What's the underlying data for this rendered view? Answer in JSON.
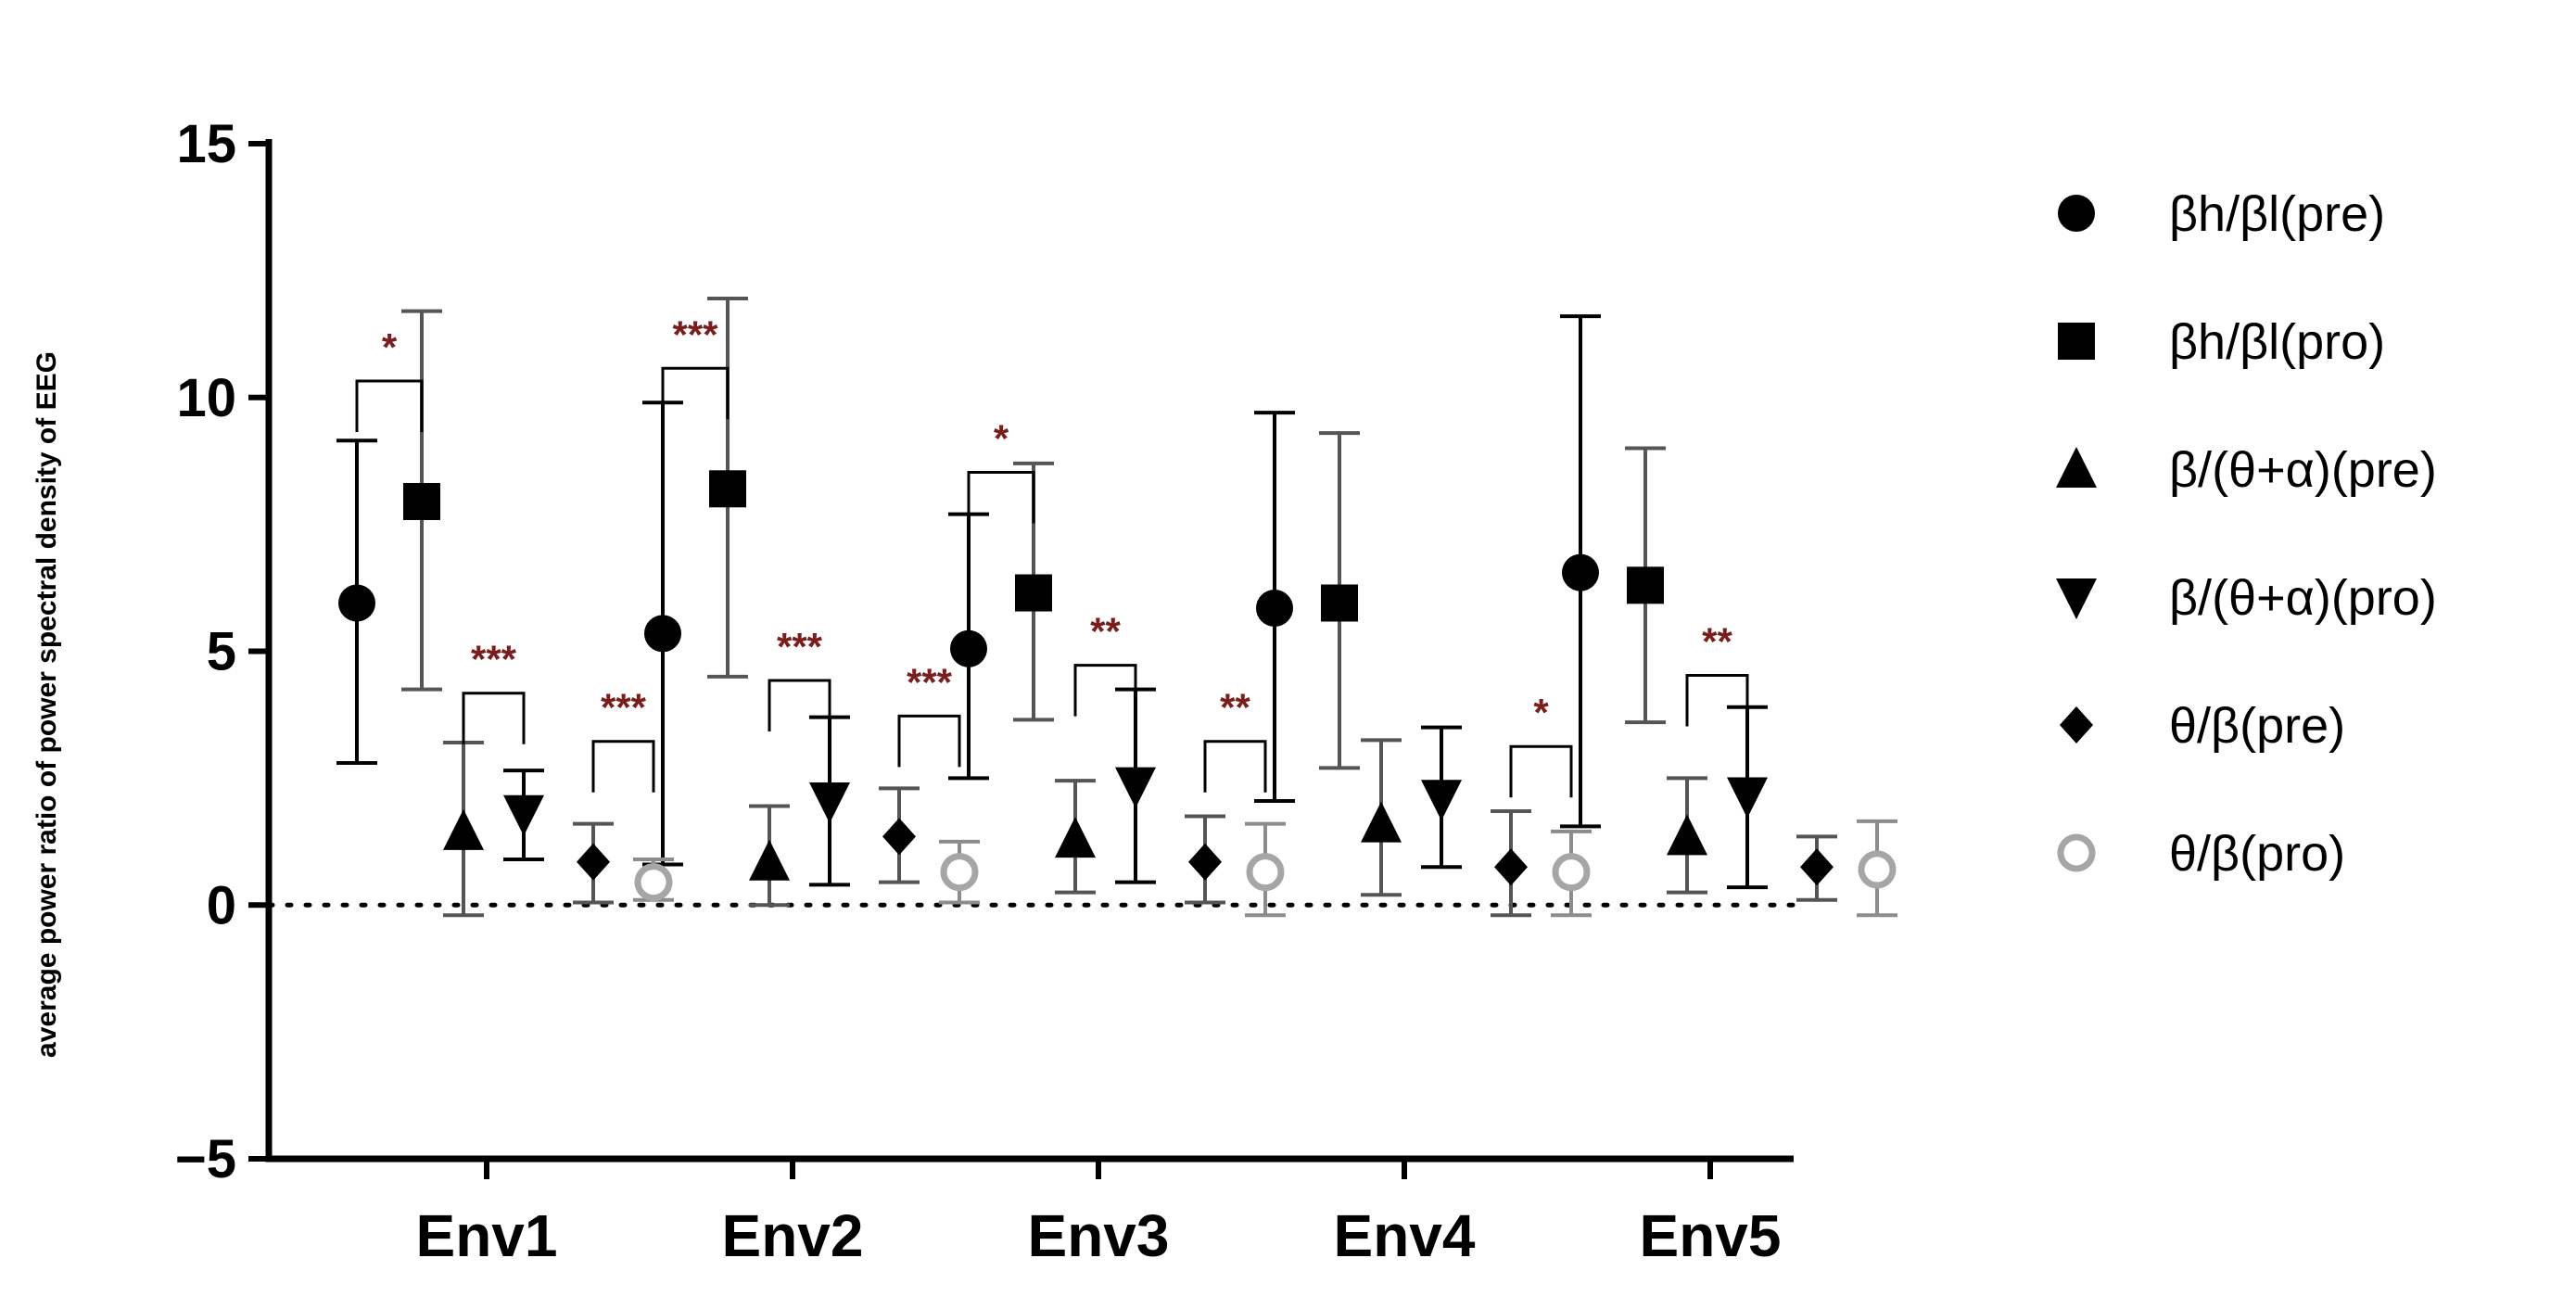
{
  "chart_data": {
    "type": "scatter",
    "title": "",
    "ylabel": "average power ratio of power spectral density of EEG",
    "xlabel": "",
    "ylim": [
      -5,
      15
    ],
    "yticks": [
      -5,
      0,
      5,
      10,
      15
    ],
    "categories": [
      "Env1",
      "Env2",
      "Env3",
      "Env4",
      "Env5"
    ],
    "reference_line": 0,
    "legend_position": "right",
    "series": [
      {
        "name": " βh/βl(pre)",
        "marker": "circle",
        "color": "#000000",
        "values": [
          5.95,
          5.35,
          5.05,
          5.85,
          6.55
        ],
        "err_low": [
          2.8,
          0.8,
          2.5,
          2.05,
          1.55
        ],
        "err_high": [
          9.15,
          9.9,
          7.7,
          9.7,
          11.6
        ]
      },
      {
        "name": " βh/βl(pro)",
        "marker": "square",
        "color": "#000000",
        "values": [
          7.95,
          8.2,
          6.15,
          5.95,
          6.3
        ],
        "err_low": [
          4.25,
          4.5,
          3.65,
          2.7,
          3.6
        ],
        "err_high": [
          11.7,
          11.95,
          8.7,
          9.3,
          9.0
        ]
      },
      {
        "name": "β/(θ+α)(pre)",
        "marker": "triangle-up",
        "color": "#000000",
        "values": [
          1.45,
          0.85,
          1.3,
          1.6,
          1.35
        ],
        "err_low": [
          -0.2,
          0.0,
          0.25,
          0.2,
          0.25
        ],
        "err_high": [
          3.2,
          1.95,
          2.45,
          3.25,
          2.5
        ]
      },
      {
        "name": "β/(θ+α)(pro)",
        "marker": "triangle-down",
        "color": "#000000",
        "values": [
          1.8,
          2.05,
          2.35,
          2.1,
          2.15
        ],
        "err_low": [
          0.9,
          0.4,
          0.45,
          0.75,
          0.35
        ],
        "err_high": [
          2.65,
          3.7,
          4.25,
          3.5,
          3.9
        ]
      },
      {
        "name": "θ/β(pre)",
        "marker": "diamond",
        "color": "#000000",
        "values": [
          0.85,
          1.35,
          0.85,
          0.75,
          0.75
        ],
        "err_low": [
          0.05,
          0.45,
          0.05,
          -0.2,
          0.1
        ],
        "err_high": [
          1.6,
          2.3,
          1.75,
          1.85,
          1.35
        ]
      },
      {
        "name": "θ/β(pro)",
        "marker": "circle-open",
        "color": "#a6a6a6",
        "values": [
          0.45,
          0.65,
          0.65,
          0.65,
          0.7
        ],
        "err_low": [
          0.1,
          0.05,
          -0.2,
          -0.2,
          -0.2
        ],
        "err_high": [
          0.9,
          1.25,
          1.6,
          1.45,
          1.65
        ]
      }
    ],
    "significance": [
      {
        "category": "Env1",
        "between": [
          0,
          1
        ],
        "label": "*"
      },
      {
        "category": "Env1",
        "between": [
          2,
          3
        ],
        "label": "***"
      },
      {
        "category": "Env1",
        "between": [
          4,
          5
        ],
        "label": "***"
      },
      {
        "category": "Env2",
        "between": [
          0,
          1
        ],
        "label": "***"
      },
      {
        "category": "Env2",
        "between": [
          2,
          3
        ],
        "label": "***"
      },
      {
        "category": "Env2",
        "between": [
          4,
          5
        ],
        "label": "***"
      },
      {
        "category": "Env3",
        "between": [
          0,
          1
        ],
        "label": "*"
      },
      {
        "category": "Env3",
        "between": [
          2,
          3
        ],
        "label": "**"
      },
      {
        "category": "Env3",
        "between": [
          4,
          5
        ],
        "label": "**"
      },
      {
        "category": "Env4",
        "between": [
          4,
          5
        ],
        "label": "*"
      },
      {
        "category": "Env5",
        "between": [
          2,
          3
        ],
        "label": "**"
      }
    ]
  }
}
